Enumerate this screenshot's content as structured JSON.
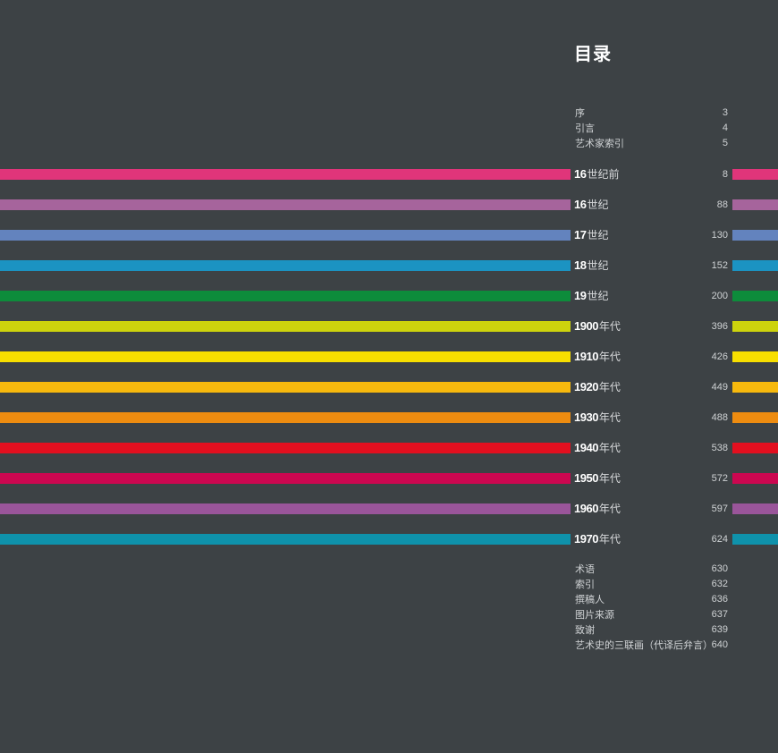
{
  "title": "目录",
  "front_matter": [
    {
      "label": "序",
      "page": "3"
    },
    {
      "label": "引言",
      "page": "4"
    },
    {
      "label": "艺术家索引",
      "page": "5"
    }
  ],
  "chapters": [
    {
      "num": "16",
      "text": "世纪前",
      "page": "8",
      "color": "#e0357a"
    },
    {
      "num": "16",
      "text": "世纪",
      "page": "88",
      "color": "#a6649c"
    },
    {
      "num": "17",
      "text": "世纪",
      "page": "130",
      "color": "#6383be"
    },
    {
      "num": "18",
      "text": "世纪",
      "page": "152",
      "color": "#1b93c2"
    },
    {
      "num": "19",
      "text": "世纪",
      "page": "200",
      "color": "#0d8c3b"
    },
    {
      "num": "1900",
      "text": "年代",
      "page": "396",
      "color": "#cdd30d"
    },
    {
      "num": "1910",
      "text": "年代",
      "page": "426",
      "color": "#f8df00"
    },
    {
      "num": "1920",
      "text": "年代",
      "page": "449",
      "color": "#f7b90d"
    },
    {
      "num": "1930",
      "text": "年代",
      "page": "488",
      "color": "#ee8c10"
    },
    {
      "num": "1940",
      "text": "年代",
      "page": "538",
      "color": "#e30f1f"
    },
    {
      "num": "1950",
      "text": "年代",
      "page": "572",
      "color": "#cc0750"
    },
    {
      "num": "1960",
      "text": "年代",
      "page": "597",
      "color": "#9a559a"
    },
    {
      "num": "1970",
      "text": "年代",
      "page": "624",
      "color": "#0f92ab"
    }
  ],
  "back_matter": [
    {
      "label": "术语",
      "page": "630"
    },
    {
      "label": "索引",
      "page": "632"
    },
    {
      "label": "撰稿人",
      "page": "636"
    },
    {
      "label": "图片来源",
      "page": "637"
    },
    {
      "label": "致谢",
      "page": "639"
    },
    {
      "label": "艺术史的三联画（代译后弁言）",
      "page": "640"
    }
  ]
}
